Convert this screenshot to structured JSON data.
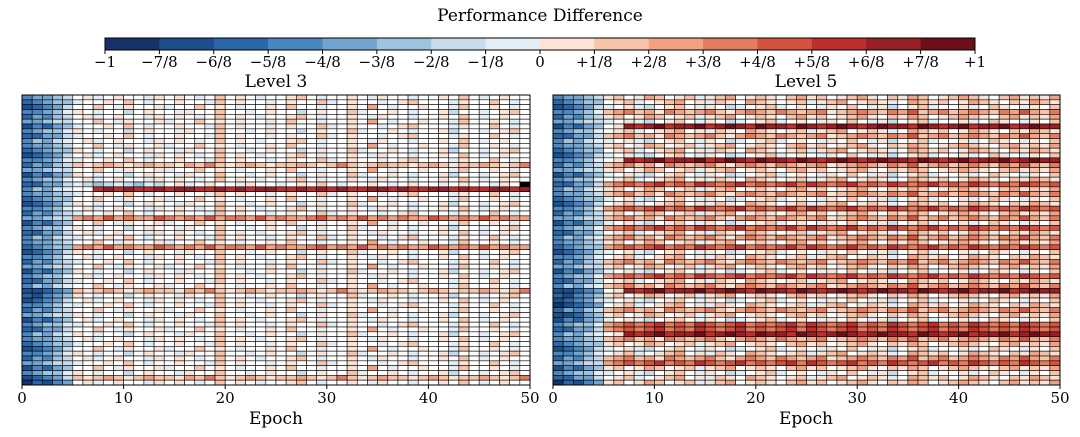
{
  "chart_data": {
    "type": "heatmap",
    "title": "Performance Difference",
    "encoding_note": "cell letters A..Q map to -8/8 .. +8/8 (I = 0)",
    "colorbar": {
      "tick_labels": [
        "−1",
        "−7/8",
        "−6/8",
        "−5/8",
        "−4/8",
        "−3/8",
        "−2/8",
        "−1/8",
        "0",
        "+1/8",
        "+2/8",
        "+3/8",
        "+4/8",
        "+5/8",
        "+6/8",
        "+7/8",
        "+1"
      ],
      "colors": [
        "#15326a",
        "#1e4f8d",
        "#2b66a8",
        "#4a86bf",
        "#72a4cf",
        "#9dc3de",
        "#c6dbeb",
        "#e3edf5",
        "#ffffff",
        "#fbe3d6",
        "#f7c4a9",
        "#f1a283",
        "#e47a5e",
        "#d3533f",
        "#bd2f2d",
        "#962025",
        "#6b0f1a"
      ],
      "range": [
        -1,
        1
      ]
    },
    "panels": [
      {
        "title": "Level 3",
        "xlabel": "Epoch",
        "xticks": [
          "0",
          "10",
          "20",
          "30",
          "40",
          "50"
        ],
        "xlim": [
          0,
          50
        ],
        "rows": [
          "DEEFGIJHIJIIHJIJIHIKIJIHIIJKIHIIJIHJIIHIIJIKIHIJII",
          "CDEFFHIIJIKIHIIJIIHKIJIIHIJIIKHIJIIHIJKIIIHJIIKIHI",
          "BCDEGIIKIHJIIJHIIKIJIHIIJIKIIHIIJILIHIIJIIHKIIJIHI",
          "DDEFHJIHIIGIJIIHJIIKIIHIJIIGIJIIKHIIJIHIIJGIIHIJKI",
          "CEDFGIJHIJIIHJIJIHIKIJIHIIJKIHIIJIHJIIHIIJIKIHIJII",
          "EEFGGIIKIHJIIJHIIKIJIHIIJIKIIHIIJILIHIIJIIHKIIJIHI",
          "BDCEFHIIJIKIHIIJIIHKIJIIHIJIIKHIJIIHIJKIIIHJIIKIHI",
          "DEFFHJIHIIGIJIIHJIIKIIHIJIIGIJIIKHIIJIHIIJGIIHIJKI",
          "CCEEGHIIJIKIHIIJIIHKIJIIHIJIIKHIJIIHIJKIIIHJIIKIHI",
          "DFEGHIJHIJIIHJIJIHIKIJIHIIJKIHIIJIHJIIHIIJIKIHIJII",
          "DEEFGIIKIHJIIJHIIKIJIHIIJIKIIHIIJILIHIIJIIHKIIJIHI",
          "CDEFFJIHIIGIJIIHJIIKIIHIJIIGIJIIKHIIJIHIIJGIIHIJKI",
          "BCDEGIJHIJIIHJIJIHIKIJIHIIJKIHIIJIHJIIHIIJIKIHIJII",
          "DDEFHHIIJIKIHIIJIIHKIJIIHIJIIKHIJIIHIJKIIIHJIIKIHI",
          "CEDFGKJKLKJKLKKJLKMKJKLKJKKLKJKMKJKLKKJKLKJKKLKJKM",
          "EEFGGIIKIHJIIJHIIKIJIHIIJIKIIHIIJILIHIIJIIHKIIJIHI",
          "BDCEFJIHIIGIJIIHJIIKIIHIJIIGIJIIKHIIJIHIIJGIIHIJKI",
          "DEFFHIJHIJIIHJIJIHIKIJIHIIJKIHIIJIHJIIHIIJIKIHIJII",
          "CCEEGHGFGHGFHGIJHIJIIHJIIHIJIKIHIIJIHIJIIHIJIIHJI",
          "DFEGHIIOPOPOOPOPPOOPOPOPPOOPOPOPOOPPOPOOPPOPOOPPOP",
          "DEEFGHIIJIKIHIIJIIHKIJIIHIJIIKHIJIIHIJKIIIHJIIKIHI",
          "CDEFFIIKIHJIIJHIIKIJIHIIJIKIIHIIJILIHIIJIIHKIIJIHI",
          "BCDEGJIHIIGIJIIHJIIKIIHIJIIGIJIIKHIIJIHIIJGIIHIJKI",
          "DDEFHIJHIJIIHJIJIHIKIJIHIIJKIHIIJIHJIIHIIJIKIHIJII",
          "CEDFGHIIJIKIHIIJIIHKIJIIHIJIIKHIJIIHIJKIIIHJIIKIHI",
          "EEFGGLMLNLMLLNMLMLNLMMLNLMLLMNLMLNLMLMLLNMLMLNLMLL",
          "BDCEFIIKIHJIIJHIIKIJIHIIJIKIIHIIJILIHIIJIIHKIIJIHI",
          "DEFFHJIHIIGIJIIHJIIKIIHIJIIGIJIIKHIIJIHIIJGIIHIJKI",
          "CCEEGIJHIJIIHJIJIHIKIJIHIIJKIHIIJIHJIIHIIJIKIHIJII",
          "DFEGHHIIJIKIHIIJIIHKIJIIHIJIIKHIJIIHIJKIIIHJIIKIHI",
          "DEEFGIIKIHJIIJHIIKIJIHIIJIKIIHIIJILIHIIJIIHKIIJIHI",
          "CDEFFLMLNLMLLNMLMLNLMMLNLMLLMNLMLNLMLMLLNMLMLNLMLL",
          "BCDEGJIHIIGIJIIHJIIKIIHIJIIGIJIIKHIIJIHIIJGIIHIJKI",
          "DDEFHIJHIJIIHJIJIHIKIJIHIIJKIHIIJIHJIIHIIJIKIHIJII",
          "CEDFGHIIJIKIHIIJIIHKIJIIHIJIIKHIJIIHIJKIIIHJIIKIHI",
          "EEFGGIIKIHJIIJHIIKIJIHIIJIKIIHIIJILIHIIJIIHKIIJIHI",
          "BDCEFJIHIIGIJIIHJIIKIIHIJIIGIJIIKHIIJIHIIJGIIHIJKI",
          "DEFFHIJHIJIIHJIJIHIKIJIHIIJKIHIIJIHJIIHIIJIKIHIJII",
          "CCEEGHIIJIKIHIIJIIHKIJIIHIJIIKHIJIIHIJKIIIHJIIKIHI",
          "DFEGHIIKIHJIIJHIIKIJIHIIJIKIIHIIJILIHIIJIIHKIIJIHI",
          "BBCDEKJKLKJKLKKJLKMKJKLKJKKLKJKMKJKLKKJKLKJKKLKJKM",
          "CBDEFJIHIIGIJIIHJIIKIIHIJIIGIJIIKHIIJIHIIJGIIHIJKI",
          "BCDEGIJHIJIIHJIJIHIKIJIHIIJKIHIIJIHJIIHIIJIKIHIJII",
          "DDEFHHIIJIKIHIIJIIHKIJIIHIJIIKHIJIIHIJKIIIHJIIKIHI",
          "CEDFGIIKIHJIIJHIIKIJIHIIJIKIIHIIJILIHIIJIIHKIIJIHI",
          "EEFGGJIHIIGIJIIHJIIKIIHIJIIGIJIIKHIIJIHIIJGIIHIJKI",
          "BDCEFIJHIJIIHJIJIHIKIJIHIIJKIHIIJIHJIIHIIJIKIHIJII",
          "DEFFHHIIJIKIHIIJIIHKIJIIHIJIIKHIJIIHIJKIIIHJIIKIHI",
          "CCEEGIIKIHJIIJHIIKIJIHIIJIKIIHIIJILIHIIJIIHKIIJIHI",
          "DFEGHJIHIIGIJIIHJIIKIIHIJIIGIJIIKHIIJIHIIJGIIHIJKI",
          "DEEFGIJHIJIIHJIJIHIKIJIHIIJKIHIIJIHJIIHIIJIKIHIJII",
          "CDEFFHIIJIKIHIIJIIHKIJIIHIJIIKHIJIIHIJKIIIHJIIKIHI",
          "BCDEGIIKIHJIIJHIIKIJIHIIJIKIIHIIJILIHIIJIIHKIIJIHI",
          "DDEFHJIHIIGIJIIHJIIKIIHIJIIGIJIIKHIIJIHIIJGIIHIJKI",
          "CEDFGIJHIJIIHJIJIHIKIJIHIIJKIHIIJIHJIIHIIJIKIHIJII",
          "EEFGGHIIJIKIHIIJIIHKIJIIHIJIIKHIJIIHIJKIIIHJIIKIHI",
          "BDCEFIIKIHJIIJHIIKIJIHIIJIKIIHIIJILIHIIJIIHKIIJIHI",
          "DEFFHJIHIIGIJIIHJIIKIIHIJIIGIJIIKHIIJIHIIJGIIHIJKI",
          "BCDEGKJKLKJKLKKJLKMKJKLKJKKLKJKMKJKLKKJKLKJKKLKJKM",
          "ACBDEIJHIJIIHJIJIHIKIJIHIIJKIHIIJIHJIIHIIJIKIHIJII"
        ]
      },
      {
        "title": "Level 5",
        "xlabel": "Epoch",
        "xticks": [
          "0",
          "10",
          "20",
          "30",
          "40",
          "50"
        ],
        "xlim": [
          0,
          50
        ],
        "rows": [
          "DEEFGJKIJLKIJKHJKLIJKJIKLJKIJKLJIKJLKIJKLKJIKLJKJL",
          "CDEFFIJKHIJKLIJHKJILKJIJKHJKLIJKJHILKJKIJLKJIKJLKJ",
          "BCDEGHIJHGIJKIHJIGHIJKHIJIHJIKIHJGIJKHIIJHIKJIHJIK",
          "DDEFHKLMKLJMLKLMKJLMLKMLKLMJKLMLKMLNKLMKLMLKMLNLKM",
          "CEDFGJKIJLKIJKHJKLIJKJIKLJKIJKLJIKJLKIJKLKJIKLJKJL",
          "EEFGGHIJHGIJKIHJIGHIJKHIJIHJIKIHJGIJKHIIJHIKJIHJIK",
          "BDCEFIJPOPQOPPQOPQPOQPPOQPOPQPOPQPPOQPOPQOPPQOPQPP",
          "DEFFHIJKHIJKLIJHKJILKJIJKHJKLIJKJHILKJKIJLKJIKJLKJ",
          "CCEEGKLMKLJMLKLMKJLMLKMLKLMJKLMLKMLNKLMKLMLKMLNLKM",
          "DFEGHHIJHGIJKIHJIGHIJKHIJIHJIKIHJGIJKHIIJHIKJIHJIK",
          "DEEFGJKIJLKIJKHJKLIJKJIKLJKIJKLJIKJLKIJKLKJIKLJKJL",
          "CDEFFIJKHIJKLIJHKJILKJIJKHJKLIJKJHILKJKIJLKJIKJLKJ",
          "BCDEGHIJHGIJKIHJIGHIJKHIJIHJIKIHJGIJKHIIJHIKJIHJIK",
          "DDEFHIJPOPQOPPQOPQPOQPPOQPOPQPOPQPPOQPOPQOPPQOPQPP",
          "CEDFGKLMKLJMLKLMKJLMLKMLKLMJKLMLKMLNKLMKLMLKMLNLKM",
          "EEFGGJKIJLKIJKHJKLIJKJIKLJKIJKLJIKJLKIJKLKJIKLJKJL",
          "BDCEFHIJHGIJKIHJIGHIJKHIJIHJIKIHJGIJKHIIJHIKJIHJIK",
          "DEFFHIJKHIJKLIJHKJILKJIJKHJKLIJKJHILKJKIJLKJIKJLKJ",
          "CCEEGLMNMNOMNMONMNOMNMNOMONMNOMNMONMNOMNMONMNMONMN",
          "DFEGHJKIJLKIJKHJKLIJKJIKLJKIJKLJIKJLKIJKLKJIKLJKJL",
          "DEEFGKLMKLJMLKLMKJLMLKMLKLMJKLMLKMLNKLMKLMLKMLNLKM",
          "CDEFFHIJHGIJKIHJIGHIJKHIJIHJIKIHJGIJKHIIJHIKJIHJIK",
          "BCDEGIJKHIJKLIJHKJILKJIJKHJKLIJKJHILKJKIJLKJIKJLKJ",
          "DDEFHLMNMNOMNMONMNOMNMNOMONMNOMNMONMNOMNMONMNMONMN",
          "CEDFGJKIJLKIJKHJKLIJKJIKLJKIJKLJIKJLKIJKLKJIKLJKJL",
          "EEFGGKLMKLJMLKLMKJLMLKMLKLMJKLMLKMLNKLMKLMLKMLNLKM",
          "BDCEFHIJHGIJKIHJIGHIJKHIJIHJIKIHJGIJKHIIJHIKJIHJIK",
          "DEFFHLMNMNOMNMONMNOMNMNOMONMNOMNMONMNOMNMONMNMONMN",
          "CCEEGIJKHIJKLIJHKJILKJIJKHJKLIJKJHILKJKIJLKJIKJLKJ",
          "DFEGHKLMKLJMLKLMKJLMLKMLKLMJKLMLKMLNKLMKLMLKMLNLKM",
          "DEEFGJKIJLKIJKHJKLIJKJIKLJKIJKLJIKJLKIJKLKJIKLJKJL",
          "CDEFFLMNMNOMNMONMNOMNMNOMONMNOMNMONMNOMNMONMNMONMN",
          "BCDEGHIJHGIJKIHJIGHIJKHIJIHJIKIHJGIJKHIIJHIKJIHJIK",
          "DDEFHIJKHIJKLIJHKJILKJIJKHJKLIJKJHILKJKIJLKJIKJLKJ",
          "CEDFGKLMKLJMLKLMKJLMLKMLKLMJKLMLKMLNKLMKLMLKMLNLKM",
          "EEFGGJKIJLKIJKHJKLIJKJIKLJKIJKLJIKJLKIJKLKJIKLJKJL",
          "BDCEFHIJHGIJKIHJIGHIJKHIJIHJIKIHJGIJKHIIJHIKJIHJIK",
          "DEFFHLMNMNOMNMONMNOMNMNOMONMNOMNMONMNOMNMONMNMONMN",
          "CCEEGIJKHIJKLIJHKJILKJIJKHJKLIJKJHILKJKIJLKJIKJLKJ",
          "DFEGHKLMKLJMLKLMKJLMLKMLKLMJKLMLKMLNKLMKLMLKMLNLKM",
          "BBCDEIJPOPQOPPQOPQPOQPPOQPOPQPOPQPPOQPOPQOPPQOPQPP",
          "CBDEFJKIJLKIJKHJKLIJKJIKLJKIJKLJIKJLKIJKLKJIKLJKJL",
          "BCDEGHIJHGIJKIHJIGHIJKHIJIHJIKIHJGIJKHIIJHIKJIHJIK",
          "ABCDEIJKHIJKLIJHKJILKJIJKHJKLIJKJHILKJKIJLKJIKJLKJ",
          "CEDFGKLMKLJMLKLMKJLMLKMLKLMJKLMLKMLNKLMKLMLKMLNLKM",
          "BBCEFJKIJLKIJKHJKLIJKJIKLJKIJKLJIKJLKIJKLKJIKLJKJL",
          "BDCEFHIJHGIJKIHJIGHIJKHIJIHJIKIHJGIJKHIIJHIKJIHJIK",
          "DEFFHLMNMNOMNMONMNOMNMNOMONMNOMNMONMNOMNMONMNMONMN",
          "CCEEGLMNMNOMNMONMNOMNMNOMONMNOMNMONMNOMNMONMNMONMN",
          "DFEGHIJPOPQOPPQOPQPOQPPOQPOPQPOPQPPOQPOPQOPPQOPQPP",
          "DEEFGKLMKLJMLKLMKJLMLKMLKLMJKLMLKMLNKLMKLMLKMLNLKM",
          "CDEFFJKIJLKIJKHJKLIJKJIKLJKIJKLJIKJLKIJKLKJIKLJKJL",
          "BCDEGHIJHGIJKIHJIGHIJKHIJIHJIKIHJGIJKHIIJHIKJIHJIK",
          "DDEFHIJKHIJKLIJHKJILKJIJKHJKLIJKJHILKJKIJLKJIKJLKJ",
          "CEDFGKLMKLJMLKLMKJLMLKMLKLMJKLMLKMLNKLMKLMLKMLNLKM",
          "EEFGGLMNMNOMNMONMNOMNMNOMONMNOMNMONMNOMNMONMNMONMN",
          "BDCEFJKIJLKIJKHJKLIJKJIKLJKIJKLJIKJLKIJKLKJIKLJKJL",
          "DEFFHHIJHGIJKIHJIGHIJKHIJIHJIKIHJGIJKHIIJHIKJIHJIK",
          "CCEEGIJKHIJKLIJHKJILKJIJKHJKLIJKJHILKJKIJLKJIKJLKJ",
          "ACBDEJKIJLKIJKHJKLIJKJIKLJKIJKLJIKJLKIJKLKJIKLJKJL"
        ]
      }
    ]
  }
}
